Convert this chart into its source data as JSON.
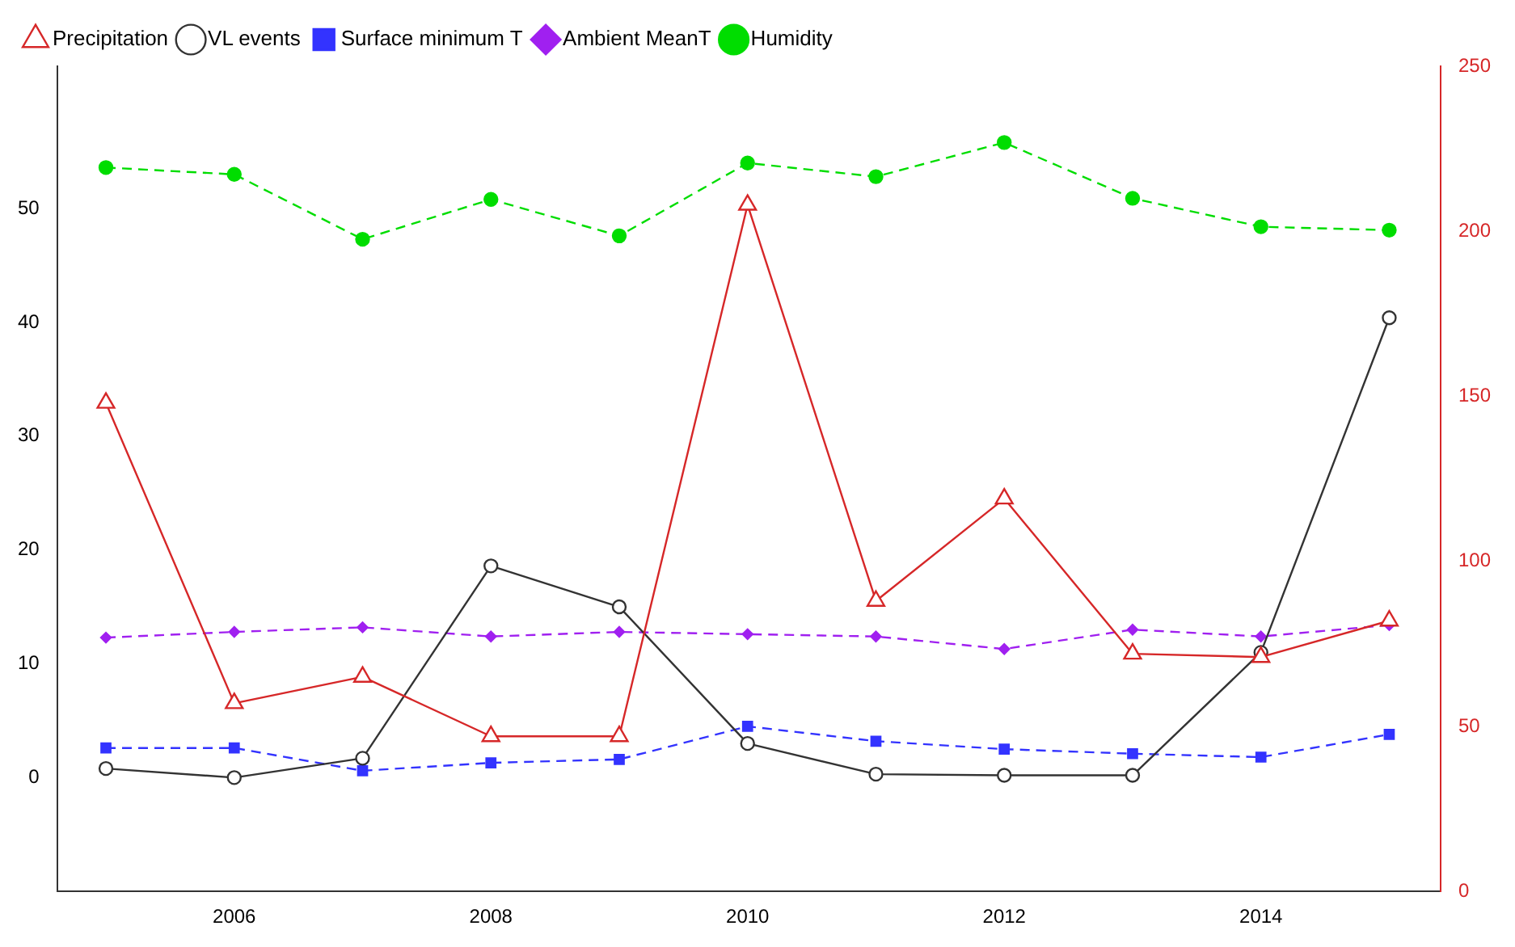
{
  "chart_data": {
    "type": "line",
    "x": [
      2005,
      2006,
      2007,
      2008,
      2009,
      2010,
      2011,
      2012,
      2013,
      2014,
      2015
    ],
    "xlim": [
      2004.62,
      2015.4
    ],
    "xticks": [
      2006,
      2008,
      2010,
      2012,
      2014
    ],
    "ylim": [
      -10,
      62.5
    ],
    "yticks": [
      0,
      10,
      20,
      30,
      40,
      50
    ],
    "y2lim": [
      0,
      250
    ],
    "y2ticks": [
      0,
      50,
      100,
      150,
      200,
      250
    ],
    "grid": false,
    "legend": "top left",
    "series": [
      {
        "name": "VL events",
        "color": "#333333",
        "marker": "circle",
        "line_style": "solid",
        "values": [
          0.8,
          0,
          1.7,
          18.6,
          15,
          3,
          0.3,
          0.2,
          0.2,
          11,
          40.4
        ]
      },
      {
        "name": "Precipitation",
        "color": "#d62728",
        "marker": "triangle",
        "line_style": "solid",
        "axis": "y2",
        "values": [
          148,
          57,
          65,
          47,
          47,
          208,
          88,
          119,
          72,
          71,
          82
        ]
      },
      {
        "name": "Surface minimum T",
        "color": "#3333ff",
        "marker": "square",
        "line_style": "dashed",
        "values": [
          2.6,
          2.6,
          0.6,
          1.3,
          1.6,
          4.5,
          3.2,
          2.5,
          2.1,
          1.8,
          3.8
        ]
      },
      {
        "name": "Ambient MeanT",
        "color": "#a020f0",
        "marker": "diamond",
        "line_style": "dashed",
        "values": [
          12.3,
          12.8,
          13.2,
          12.4,
          12.8,
          12.6,
          12.4,
          11.3,
          13.0,
          12.4,
          13.4
        ]
      },
      {
        "name": "Humidity",
        "color": "#00dd00",
        "marker": "circle",
        "line_style": "dashed",
        "values": [
          53.6,
          53.0,
          47.3,
          50.8,
          47.6,
          54.0,
          52.8,
          55.8,
          50.9,
          48.4,
          48.1
        ]
      }
    ]
  }
}
